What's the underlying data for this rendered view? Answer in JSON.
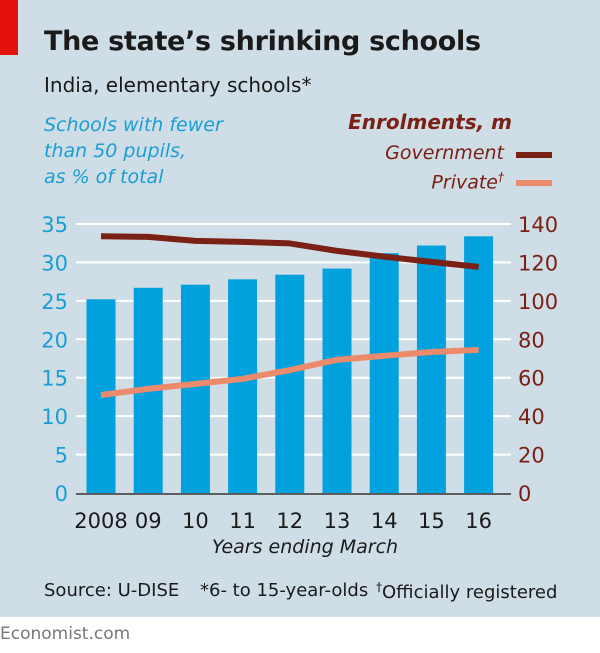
{
  "header": {
    "title": "The state’s shrinking schools",
    "subtitle": "India, elementary schools*"
  },
  "left_axis_label": [
    "Schools with fewer",
    "than 50 pupils,",
    "as % of total"
  ],
  "right_legend": {
    "title": "Enrolments, m",
    "government_label": "Government",
    "private_label": "Private",
    "private_marker": "†"
  },
  "footer": {
    "source": "Source: U-DISE",
    "note1": "*6- to 15-year-olds",
    "note2_marker": "†",
    "note2": "Officially registered",
    "credit": "Economist.com"
  },
  "colors": {
    "background": "#cfdee6",
    "accent_red": "#e3120b",
    "bars": "#00a1dc",
    "government": "#7a2015",
    "private": "#ec8a6c",
    "left_axis_text": "#1a9ed3",
    "right_axis_text": "#7a2015"
  },
  "chart_data": {
    "type": "bar+line",
    "title": "The state’s shrinking schools",
    "subtitle": "India, elementary schools*",
    "xlabel": "Years ending March",
    "categories": [
      "2008",
      "09",
      "10",
      "11",
      "12",
      "13",
      "14",
      "15",
      "16"
    ],
    "left_axis": {
      "label": "Schools with fewer than 50 pupils, as % of total",
      "ylim": [
        0,
        35
      ],
      "ticks": [
        0,
        5,
        10,
        15,
        20,
        25,
        30,
        35
      ]
    },
    "right_axis": {
      "label": "Enrolments, m",
      "ylim": [
        0,
        140
      ],
      "ticks": [
        0,
        20,
        40,
        60,
        80,
        100,
        120,
        140
      ]
    },
    "series": [
      {
        "name": "Schools with fewer than 50 pupils, % of total",
        "type": "bar",
        "axis": "left",
        "values": [
          25.2,
          26.7,
          27.1,
          27.8,
          28.4,
          29.2,
          31.2,
          32.2,
          33.4
        ]
      },
      {
        "name": "Government",
        "type": "line",
        "axis": "right",
        "values": [
          133.6,
          133.3,
          131.2,
          130.7,
          129.9,
          126.0,
          123.0,
          120.3,
          117.7
        ]
      },
      {
        "name": "Private†",
        "type": "line",
        "axis": "right",
        "values": [
          51.0,
          54.2,
          56.8,
          59.4,
          64.0,
          69.3,
          71.4,
          73.4,
          74.5
        ]
      }
    ],
    "grid": true,
    "legend": "top-right"
  }
}
